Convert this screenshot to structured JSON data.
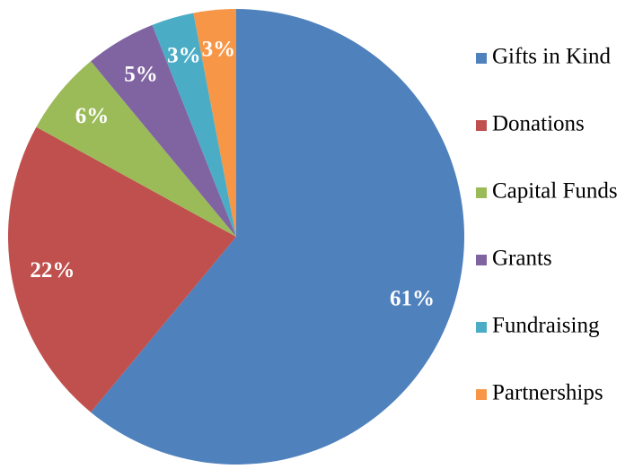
{
  "chart_data": {
    "type": "pie",
    "categories": [
      "Gifts in Kind",
      "Donations",
      "Capital Funds",
      "Grants",
      "Fundraising",
      "Partnerships"
    ],
    "values": [
      61,
      22,
      6,
      5,
      3,
      3
    ],
    "value_labels": [
      "61%",
      "22%",
      "6%",
      "5%",
      "3%",
      "3%"
    ],
    "colors": [
      "#4f81bd",
      "#c0504d",
      "#9bbb59",
      "#8064a2",
      "#4bacc6",
      "#f79646"
    ]
  }
}
